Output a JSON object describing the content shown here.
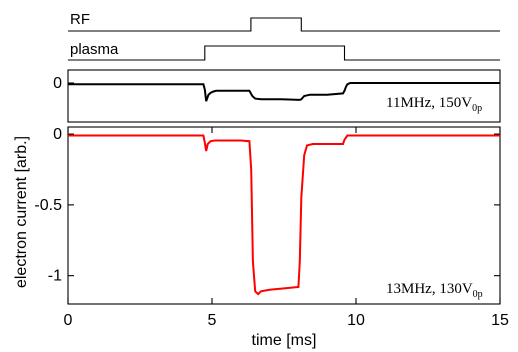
{
  "chart_data": [
    {
      "type": "line",
      "panel": "timing",
      "series": [
        {
          "name": "RF",
          "x": [
            0,
            6.35,
            6.35,
            8.1,
            8.1,
            15
          ],
          "y": [
            0,
            0,
            1,
            1,
            0,
            0
          ]
        },
        {
          "name": "plasma",
          "x": [
            0,
            4.75,
            4.75,
            9.6,
            9.6,
            15
          ],
          "y": [
            0,
            0,
            1,
            1,
            0,
            0
          ]
        }
      ],
      "xlim": [
        0,
        15
      ]
    },
    {
      "type": "line",
      "panel": "upper",
      "annotation": {
        "freq": "11MHz, 150V",
        "sub": "0p"
      },
      "color": "#000000",
      "yticks": [
        0
      ],
      "ylim": [
        -0.06,
        0.02
      ],
      "xlim": [
        0,
        15
      ],
      "series": [
        {
          "x": [
            0,
            4.7,
            4.75,
            4.8,
            4.88,
            4.95,
            5.05,
            5.15,
            5.3,
            5.8,
            6.3,
            6.4,
            6.5,
            6.7,
            7.4,
            8.05,
            8.1,
            8.2,
            8.4,
            9.0,
            9.55,
            9.6,
            9.65,
            9.7,
            9.8,
            15
          ],
          "y": [
            -0.002,
            -0.002,
            -0.01,
            -0.028,
            -0.018,
            -0.015,
            -0.013,
            -0.012,
            -0.012,
            -0.012,
            -0.012,
            -0.02,
            -0.024,
            -0.025,
            -0.025,
            -0.026,
            -0.025,
            -0.02,
            -0.018,
            -0.018,
            -0.016,
            -0.012,
            -0.006,
            -0.002,
            0.0,
            0.0
          ]
        }
      ]
    },
    {
      "type": "line",
      "panel": "lower",
      "annotation": {
        "freq": "13MHz, 130V",
        "sub": "0p"
      },
      "color": "#ff0000",
      "ylabel": "electron current [arb.]",
      "xlabel": "time [ms]",
      "yticks": [
        0,
        -0.5,
        -1
      ],
      "yticklabels": [
        "0",
        "-0.5",
        "-1"
      ],
      "xticks": [
        0,
        5,
        10,
        15
      ],
      "xticklabels": [
        "0",
        "5",
        "10",
        "15"
      ],
      "xlim": [
        0,
        15
      ],
      "ylim": [
        -1.2,
        0.05
      ],
      "series": [
        {
          "x": [
            0,
            4.7,
            4.75,
            4.8,
            4.85,
            4.95,
            5.1,
            5.5,
            6.0,
            6.3,
            6.36,
            6.42,
            6.5,
            6.6,
            6.7,
            7.0,
            7.5,
            8.0,
            8.05,
            8.1,
            8.2,
            8.3,
            8.5,
            9.0,
            9.55,
            9.6,
            9.7,
            15
          ],
          "y": [
            -0.01,
            -0.01,
            -0.06,
            -0.12,
            -0.07,
            -0.05,
            -0.045,
            -0.045,
            -0.045,
            -0.05,
            -0.25,
            -0.9,
            -1.11,
            -1.13,
            -1.11,
            -1.1,
            -1.09,
            -1.08,
            -0.9,
            -0.45,
            -0.15,
            -0.08,
            -0.07,
            -0.07,
            -0.07,
            -0.04,
            -0.01,
            -0.01
          ]
        }
      ]
    }
  ],
  "colors": {
    "upper_trace": "#000000",
    "lower_trace": "#ff0000",
    "axes": "#000000"
  }
}
